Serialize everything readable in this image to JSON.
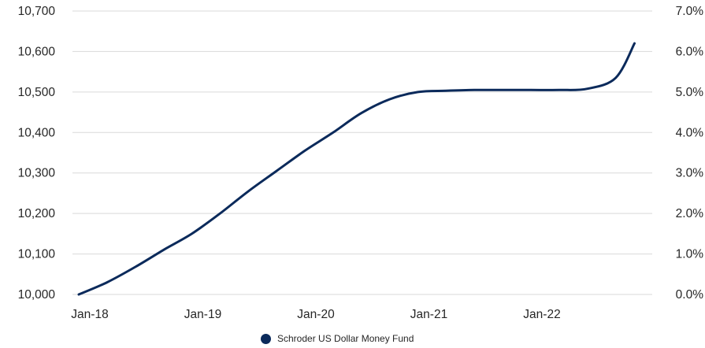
{
  "chart_data": {
    "type": "line",
    "xlabel": "",
    "ylabel": "",
    "x_ticks": [
      "Jan-18",
      "Jan-19",
      "Jan-20",
      "Jan-21",
      "Jan-22"
    ],
    "y_ticks": [
      "10,000",
      "10,100",
      "10,200",
      "10,300",
      "10,400",
      "10,500",
      "10,600",
      "10,700"
    ],
    "y2_ticks": [
      "0.0%",
      "1.0%",
      "2.0%",
      "3.0%",
      "4.0%",
      "5.0%",
      "6.0%",
      "7.0%"
    ],
    "ylim": [
      10000,
      10700
    ],
    "y2lim": [
      0,
      7
    ],
    "grid": true,
    "legend_position": "bottom-center",
    "series": [
      {
        "name": "Schroder US Dollar Money Fund",
        "color": "#0b2a5b",
        "x": [
          "2018-01",
          "2018-04",
          "2018-07",
          "2018-10",
          "2019-01",
          "2019-04",
          "2019-07",
          "2019-10",
          "2020-01",
          "2020-04",
          "2020-07",
          "2020-10",
          "2021-01",
          "2021-04",
          "2021-07",
          "2021-10",
          "2022-01",
          "2022-04",
          "2022-07",
          "2022-10",
          "2022-12"
        ],
        "values": [
          10000,
          10030,
          10068,
          10110,
          10150,
          10200,
          10255,
          10305,
          10355,
          10400,
          10448,
          10482,
          10500,
          10503,
          10505,
          10505,
          10505,
          10505,
          10508,
          10535,
          10620
        ]
      }
    ]
  }
}
